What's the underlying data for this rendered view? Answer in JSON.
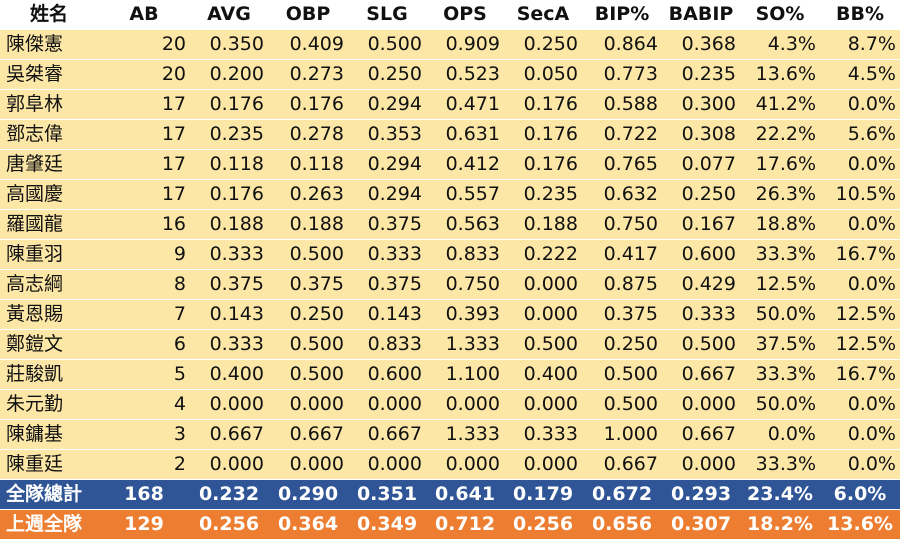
{
  "headers": [
    "姓名",
    "AB",
    "AVG",
    "OBP",
    "SLG",
    "OPS",
    "SecA",
    "BIP%",
    "BABIP",
    "SO%",
    "BB%"
  ],
  "players": [
    [
      "陳傑憲",
      "20",
      "0.350",
      "0.409",
      "0.500",
      "0.909",
      "0.250",
      "0.864",
      "0.368",
      "4.3%",
      "8.7%"
    ],
    [
      "吳桀睿",
      "20",
      "0.200",
      "0.273",
      "0.250",
      "0.523",
      "0.050",
      "0.773",
      "0.235",
      "13.6%",
      "4.5%"
    ],
    [
      "郭阜林",
      "17",
      "0.176",
      "0.176",
      "0.294",
      "0.471",
      "0.176",
      "0.588",
      "0.300",
      "41.2%",
      "0.0%"
    ],
    [
      "鄧志偉",
      "17",
      "0.235",
      "0.278",
      "0.353",
      "0.631",
      "0.176",
      "0.722",
      "0.308",
      "22.2%",
      "5.6%"
    ],
    [
      "唐肇廷",
      "17",
      "0.118",
      "0.118",
      "0.294",
      "0.412",
      "0.176",
      "0.765",
      "0.077",
      "17.6%",
      "0.0%"
    ],
    [
      "高國慶",
      "17",
      "0.176",
      "0.263",
      "0.294",
      "0.557",
      "0.235",
      "0.632",
      "0.250",
      "26.3%",
      "10.5%"
    ],
    [
      "羅國龍",
      "16",
      "0.188",
      "0.188",
      "0.375",
      "0.563",
      "0.188",
      "0.750",
      "0.167",
      "18.8%",
      "0.0%"
    ],
    [
      "陳重羽",
      "9",
      "0.333",
      "0.500",
      "0.333",
      "0.833",
      "0.222",
      "0.417",
      "0.600",
      "33.3%",
      "16.7%"
    ],
    [
      "高志綱",
      "8",
      "0.375",
      "0.375",
      "0.375",
      "0.750",
      "0.000",
      "0.875",
      "0.429",
      "12.5%",
      "0.0%"
    ],
    [
      "黃恩賜",
      "7",
      "0.143",
      "0.250",
      "0.143",
      "0.393",
      "0.000",
      "0.375",
      "0.333",
      "50.0%",
      "12.5%"
    ],
    [
      "鄭鎧文",
      "6",
      "0.333",
      "0.500",
      "0.833",
      "1.333",
      "0.500",
      "0.250",
      "0.500",
      "37.5%",
      "12.5%"
    ],
    [
      "莊駿凱",
      "5",
      "0.400",
      "0.500",
      "0.600",
      "1.100",
      "0.400",
      "0.500",
      "0.667",
      "33.3%",
      "16.7%"
    ],
    [
      "朱元勤",
      "4",
      "0.000",
      "0.000",
      "0.000",
      "0.000",
      "0.000",
      "0.500",
      "0.000",
      "50.0%",
      "0.0%"
    ],
    [
      "陳鏞基",
      "3",
      "0.667",
      "0.667",
      "0.667",
      "1.333",
      "0.333",
      "1.000",
      "0.667",
      "0.0%",
      "0.0%"
    ],
    [
      "陳重廷",
      "2",
      "0.000",
      "0.000",
      "0.000",
      "0.000",
      "0.000",
      "0.667",
      "0.000",
      "33.3%",
      "0.0%"
    ]
  ],
  "team_total": [
    "全隊總計",
    "168",
    "0.232",
    "0.290",
    "0.351",
    "0.641",
    "0.179",
    "0.672",
    "0.293",
    "23.4%",
    "6.0%"
  ],
  "last_week": [
    "上週全隊",
    "129",
    "0.256",
    "0.364",
    "0.349",
    "0.712",
    "0.256",
    "0.656",
    "0.307",
    "18.2%",
    "13.6%"
  ],
  "colors": {
    "player_row_bg": "#fde7a6",
    "team_total_bg": "#2f5597",
    "last_week_bg": "#ed7d31"
  }
}
